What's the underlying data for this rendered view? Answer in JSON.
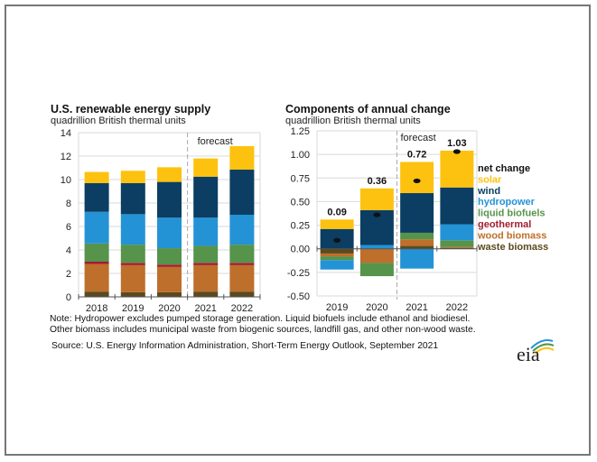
{
  "colors": {
    "solar": "#FDC20F",
    "wind": "#0B3E62",
    "hydropower": "#2393D6",
    "liquid biofuels": "#56934B",
    "geothermal": "#A51C30",
    "wood biomass": "#BE6F2B",
    "waste biomass": "#5B4A1E",
    "net change": "#111111"
  },
  "chart_data": [
    {
      "type": "bar",
      "stacked": true,
      "title": "U.S. renewable energy supply",
      "subtitle": "quadrillion British thermal units",
      "categories": [
        "2018",
        "2019",
        "2020",
        "2021",
        "2022"
      ],
      "ylim": [
        0,
        14
      ],
      "yticks": [
        "0",
        "2",
        "4",
        "6",
        "8",
        "10",
        "12",
        "14"
      ],
      "grid": true,
      "annotation": "forecast",
      "forecast_from": "2021",
      "series": [
        {
          "key": "waste biomass",
          "values": [
            0.45,
            0.4,
            0.4,
            0.45,
            0.45
          ]
        },
        {
          "key": "wood biomass",
          "values": [
            2.35,
            2.3,
            2.15,
            2.25,
            2.25
          ]
        },
        {
          "key": "geothermal",
          "values": [
            0.2,
            0.2,
            0.2,
            0.2,
            0.2
          ]
        },
        {
          "key": "liquid biofuels",
          "values": [
            1.55,
            1.55,
            1.4,
            1.45,
            1.55
          ]
        },
        {
          "key": "hydropower",
          "values": [
            2.7,
            2.6,
            2.6,
            2.4,
            2.55
          ]
        },
        {
          "key": "wind",
          "values": [
            2.45,
            2.65,
            3.05,
            3.5,
            3.85
          ]
        },
        {
          "key": "solar",
          "values": [
            0.95,
            1.05,
            1.25,
            1.55,
            2.0
          ]
        }
      ]
    },
    {
      "type": "bar",
      "stacked": true,
      "title": "Components of annual change",
      "subtitle": "quadrillion British thermal units",
      "categories": [
        "2019",
        "2020",
        "2021",
        "2022"
      ],
      "ylim": [
        -0.5,
        1.25
      ],
      "yticks": [
        "-0.50",
        "-0.25",
        "0.00",
        "0.25",
        "0.50",
        "0.75",
        "1.00",
        "1.25"
      ],
      "grid": true,
      "annotation": "forecast",
      "forecast_from": "2021",
      "net_change": [
        0.09,
        0.36,
        0.72,
        1.03
      ],
      "net_change_labels": [
        "0.09",
        "0.36",
        "0.72",
        "1.03"
      ],
      "series": [
        {
          "key": "waste biomass",
          "values": [
            -0.05,
            0.0,
            0.03,
            0.01
          ]
        },
        {
          "key": "wood biomass",
          "values": [
            -0.03,
            -0.15,
            0.07,
            0.01
          ]
        },
        {
          "key": "geothermal",
          "values": [
            0.0,
            0.0,
            0.0,
            0.0
          ]
        },
        {
          "key": "liquid biofuels",
          "values": [
            -0.04,
            -0.14,
            0.07,
            0.07
          ]
        },
        {
          "key": "hydropower",
          "values": [
            -0.1,
            0.04,
            -0.21,
            0.17
          ]
        },
        {
          "key": "wind",
          "values": [
            0.21,
            0.37,
            0.42,
            0.39
          ]
        },
        {
          "key": "solar",
          "values": [
            0.1,
            0.23,
            0.33,
            0.39
          ]
        }
      ],
      "legend": [
        "net change",
        "solar",
        "wind",
        "hydropower",
        "liquid biofuels",
        "geothermal",
        "wood biomass",
        "waste biomass"
      ],
      "legend_position": "right"
    }
  ],
  "notes": {
    "line1": "Note: Hydropower excludes pumped storage generation.  Liquid biofuels include ethanol and biodiesel.",
    "line2": "Other biomass includes municipal waste from biogenic sources, landfill gas, and other non-wood waste.",
    "source": "Source: U.S. Energy Information Administration, Short-Term Energy Outlook, September 2021"
  },
  "logo": {
    "text": "eia"
  }
}
